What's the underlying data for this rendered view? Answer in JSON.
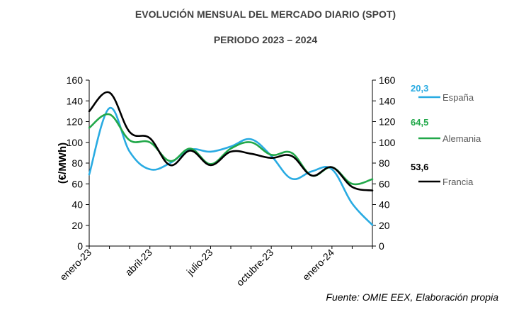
{
  "chart_data": {
    "type": "line",
    "title": "EVOLUCIÓN MENSUAL DEL MERCADO DIARIO (SPOT)",
    "subtitle": "PERIODO 2023 – 2024",
    "ylabel": "(€/MWh)",
    "ylim": [
      0,
      160
    ],
    "y_ticks": [
      0,
      20,
      40,
      60,
      80,
      100,
      120,
      140,
      160
    ],
    "x_tick_labels": [
      "enero-23",
      "abril-23",
      "julio-23",
      "octubre-23",
      "enero-24"
    ],
    "x_tick_month_index": [
      0,
      3,
      6,
      9,
      12
    ],
    "legend_position": "right",
    "series": [
      {
        "name": "España",
        "color": "#29abe2",
        "last_label": "20,3",
        "values": [
          69,
          133,
          91,
          74,
          80,
          93,
          91,
          96,
          103,
          87,
          65,
          72,
          74,
          41,
          20.3
        ]
      },
      {
        "name": "Alemania",
        "color": "#22a84a",
        "last_label": "64,5",
        "values": [
          114,
          127,
          102,
          100,
          82,
          94,
          79,
          94,
          100,
          88,
          90,
          68,
          76,
          60,
          64.5
        ]
      },
      {
        "name": "Francia",
        "color": "#000000",
        "last_label": "53,6",
        "values": [
          130,
          148,
          110,
          104,
          78,
          92,
          78,
          91,
          89,
          85,
          87,
          68,
          76,
          57,
          53.6
        ]
      }
    ]
  },
  "source": "Fuente: OMIE EEX, Elaboración propia"
}
